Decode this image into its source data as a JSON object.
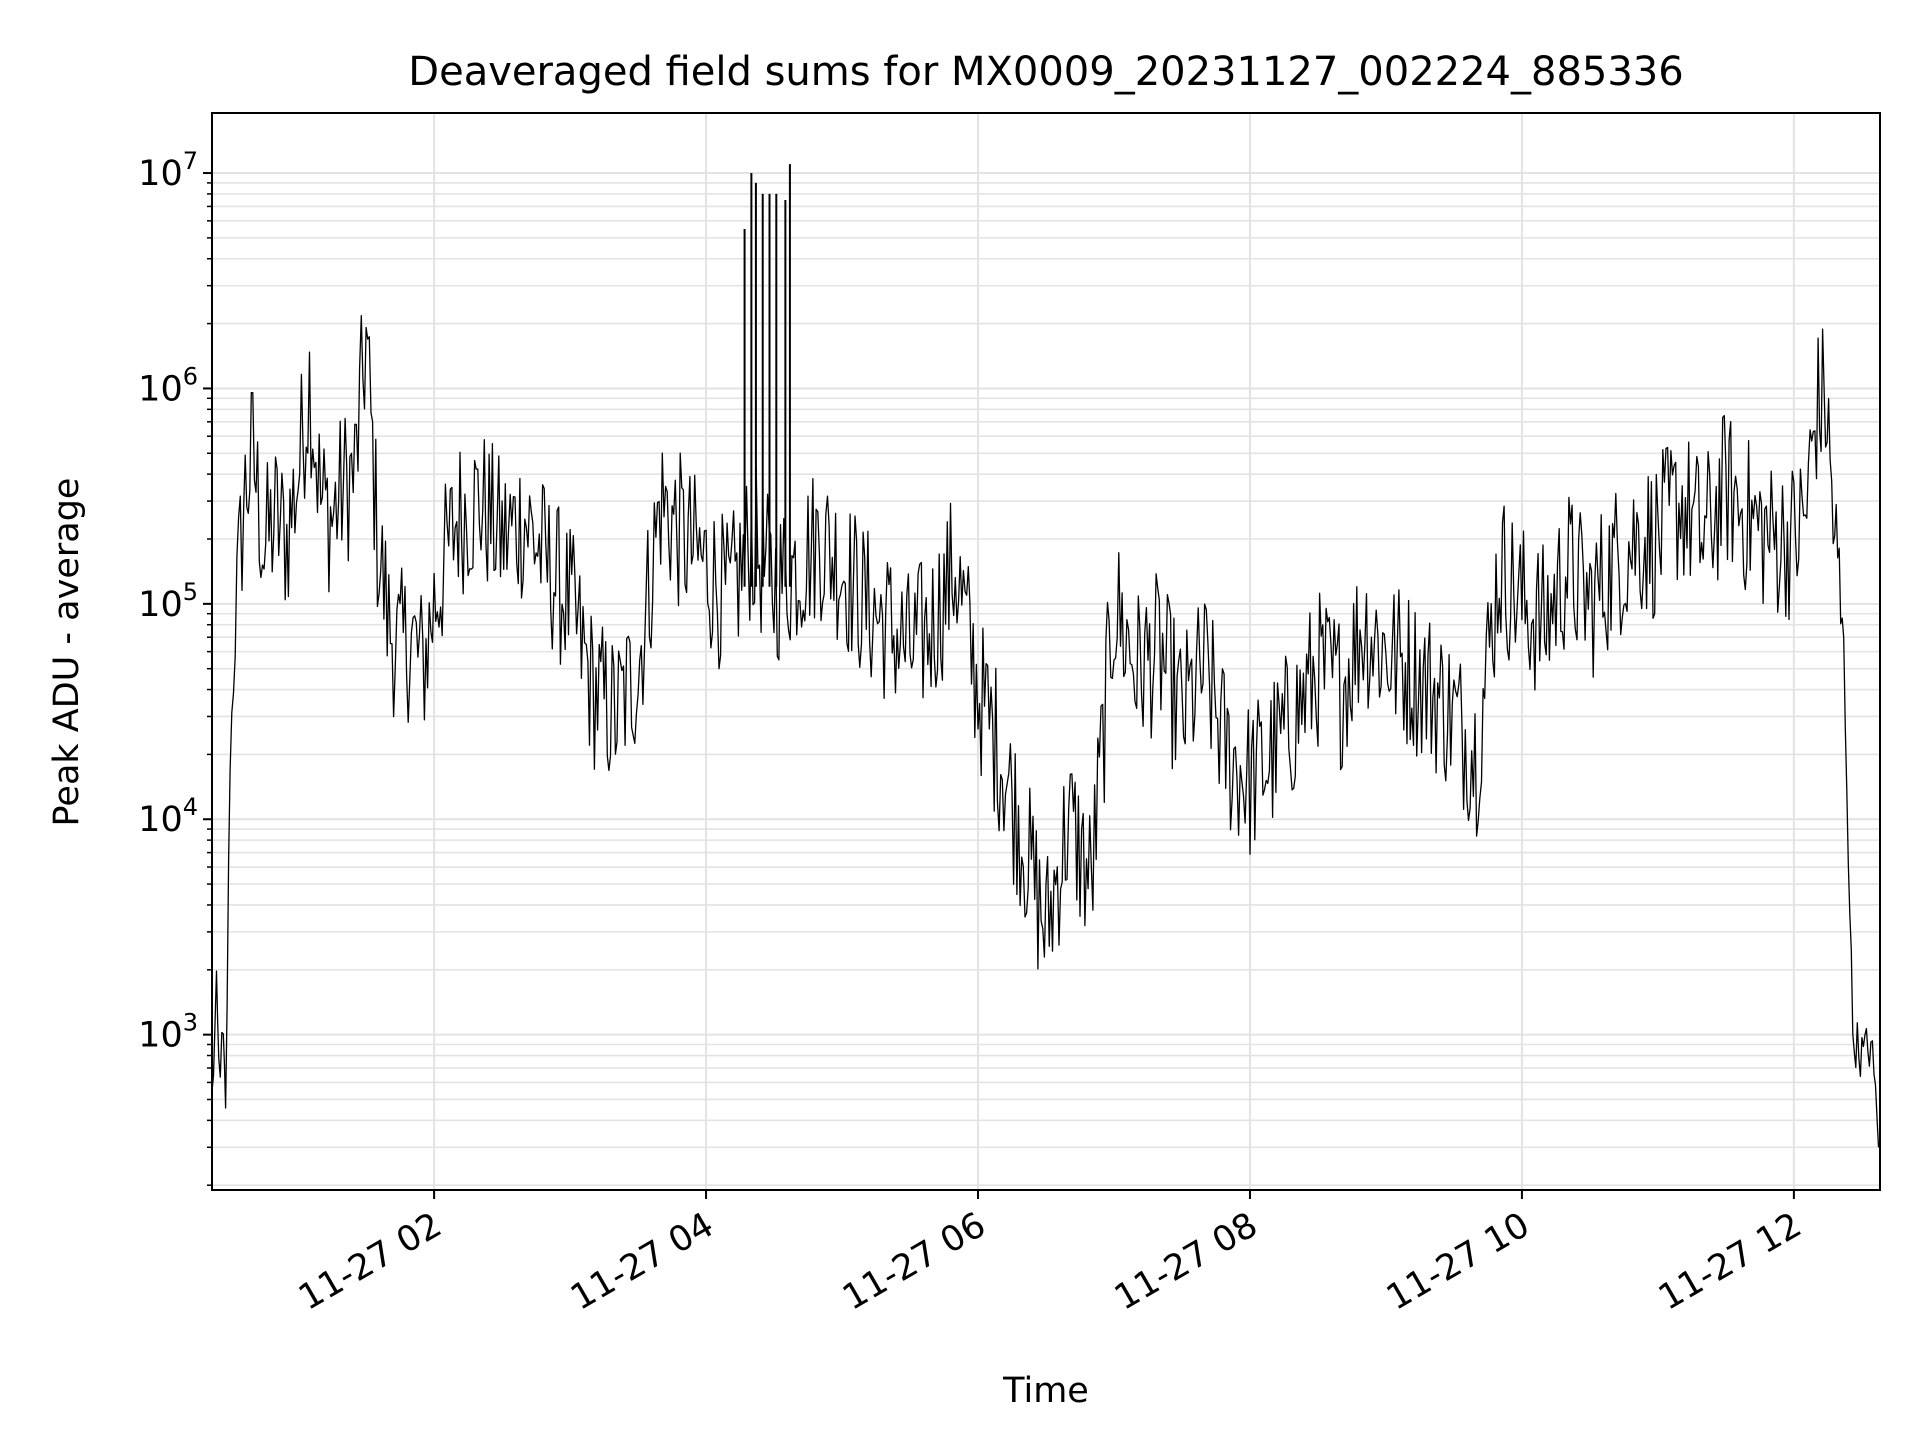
{
  "chart_data": {
    "type": "line",
    "title": "Deaveraged field sums for MX0009_20231127_002224_885336",
    "xlabel": "Time",
    "ylabel": "Peak ADU - average",
    "yscale": "log",
    "ylim": [
      190,
      19000000
    ],
    "xlim": [
      "2023-11-27 00:22",
      "2023-11-27 12:38"
    ],
    "grid": true,
    "x_ticks": [
      {
        "x": "2023-11-27 02:00",
        "label": "11-27 02"
      },
      {
        "x": "2023-11-27 04:00",
        "label": "11-27 04"
      },
      {
        "x": "2023-11-27 06:00",
        "label": "11-27 06"
      },
      {
        "x": "2023-11-27 08:00",
        "label": "11-27 08"
      },
      {
        "x": "2023-11-27 10:00",
        "label": "11-27 10"
      },
      {
        "x": "2023-11-27 12:00",
        "label": "11-27 12"
      }
    ],
    "y_ticks": [
      {
        "value": 1000,
        "base": "10",
        "exp": "3"
      },
      {
        "value": 10000,
        "base": "10",
        "exp": "4"
      },
      {
        "value": 100000,
        "base": "10",
        "exp": "5"
      },
      {
        "value": 1000000,
        "base": "10",
        "exp": "6"
      },
      {
        "value": 10000000,
        "base": "10",
        "exp": "7"
      }
    ],
    "series": [
      {
        "color": "#000000",
        "x": [
          "2023-11-27 00:22",
          "2023-11-27 00:24",
          "2023-11-27 00:25",
          "2023-11-27 00:27",
          "2023-11-27 00:28",
          "2023-11-27 00:30",
          "2023-11-27 00:33",
          "2023-11-27 00:36",
          "2023-11-27 00:40",
          "2023-11-27 00:45",
          "2023-11-27 00:50",
          "2023-11-27 00:55",
          "2023-11-27 01:00",
          "2023-11-27 01:05",
          "2023-11-27 01:10",
          "2023-11-27 01:15",
          "2023-11-27 01:20",
          "2023-11-27 01:25",
          "2023-11-27 01:30",
          "2023-11-27 01:35",
          "2023-11-27 01:40",
          "2023-11-27 01:45",
          "2023-11-27 01:50",
          "2023-11-27 01:55",
          "2023-11-27 02:00",
          "2023-11-27 02:10",
          "2023-11-27 02:20",
          "2023-11-27 02:30",
          "2023-11-27 02:40",
          "2023-11-27 02:50",
          "2023-11-27 03:00",
          "2023-11-27 03:10",
          "2023-11-27 03:20",
          "2023-11-27 03:30",
          "2023-11-27 03:40",
          "2023-11-27 03:50",
          "2023-11-27 04:00",
          "2023-11-27 04:10",
          "2023-11-27 04:20",
          "2023-11-27 04:30",
          "2023-11-27 04:40",
          "2023-11-27 04:50",
          "2023-11-27 05:00",
          "2023-11-27 05:10",
          "2023-11-27 05:20",
          "2023-11-27 05:30",
          "2023-11-27 05:40",
          "2023-11-27 05:50",
          "2023-11-27 06:00",
          "2023-11-27 06:10",
          "2023-11-27 06:20",
          "2023-11-27 06:30",
          "2023-11-27 06:40",
          "2023-11-27 06:50",
          "2023-11-27 07:00",
          "2023-11-27 07:10",
          "2023-11-27 07:20",
          "2023-11-27 07:30",
          "2023-11-27 07:40",
          "2023-11-27 07:50",
          "2023-11-27 08:00",
          "2023-11-27 08:10",
          "2023-11-27 08:20",
          "2023-11-27 08:30",
          "2023-11-27 08:40",
          "2023-11-27 08:50",
          "2023-11-27 09:00",
          "2023-11-27 09:10",
          "2023-11-27 09:20",
          "2023-11-27 09:30",
          "2023-11-27 09:40",
          "2023-11-27 09:50",
          "2023-11-27 10:00",
          "2023-11-27 10:10",
          "2023-11-27 10:20",
          "2023-11-27 10:30",
          "2023-11-27 10:40",
          "2023-11-27 10:50",
          "2023-11-27 11:00",
          "2023-11-27 11:10",
          "2023-11-27 11:20",
          "2023-11-27 11:30",
          "2023-11-27 11:40",
          "2023-11-27 11:50",
          "2023-11-27 12:00",
          "2023-11-27 12:05",
          "2023-11-27 12:10",
          "2023-11-27 12:14",
          "2023-11-27 12:18",
          "2023-11-27 12:22",
          "2023-11-27 12:26",
          "2023-11-27 12:30",
          "2023-11-27 12:34",
          "2023-11-27 12:38"
        ],
        "y": [
          500,
          1500,
          700,
          900,
          400,
          20000,
          100000,
          300000,
          500000,
          180000,
          250000,
          200000,
          400000,
          1100000,
          300000,
          250000,
          350000,
          400000,
          1700000,
          200000,
          80000,
          60000,
          70000,
          50000,
          100000,
          250000,
          300000,
          200000,
          250000,
          150000,
          100000,
          40000,
          30000,
          50000,
          300000,
          200000,
          150000,
          100000,
          200000,
          120000,
          150000,
          200000,
          150000,
          100000,
          80000,
          60000,
          80000,
          150000,
          40000,
          20000,
          8000,
          3000,
          10000,
          5000,
          100000,
          50000,
          60000,
          30000,
          50000,
          20000,
          15000,
          20000,
          30000,
          50000,
          40000,
          80000,
          60000,
          50000,
          40000,
          30000,
          20000,
          150000,
          100000,
          80000,
          150000,
          100000,
          150000,
          200000,
          200000,
          300000,
          200000,
          350000,
          250000,
          200000,
          200000,
          250000,
          800000,
          900000,
          200000,
          60000,
          1000,
          800,
          900,
          300
        ],
        "spikes": [
          {
            "x": "2023-11-27 04:17",
            "y": 5500000
          },
          {
            "x": "2023-11-27 04:20",
            "y": 10000000
          },
          {
            "x": "2023-11-27 04:22",
            "y": 9000000
          },
          {
            "x": "2023-11-27 04:25",
            "y": 8000000
          },
          {
            "x": "2023-11-27 04:28",
            "y": 8000000
          },
          {
            "x": "2023-11-27 04:31",
            "y": 8000000
          },
          {
            "x": "2023-11-27 04:35",
            "y": 7500000
          },
          {
            "x": "2023-11-27 04:37",
            "y": 11000000
          }
        ]
      }
    ]
  }
}
